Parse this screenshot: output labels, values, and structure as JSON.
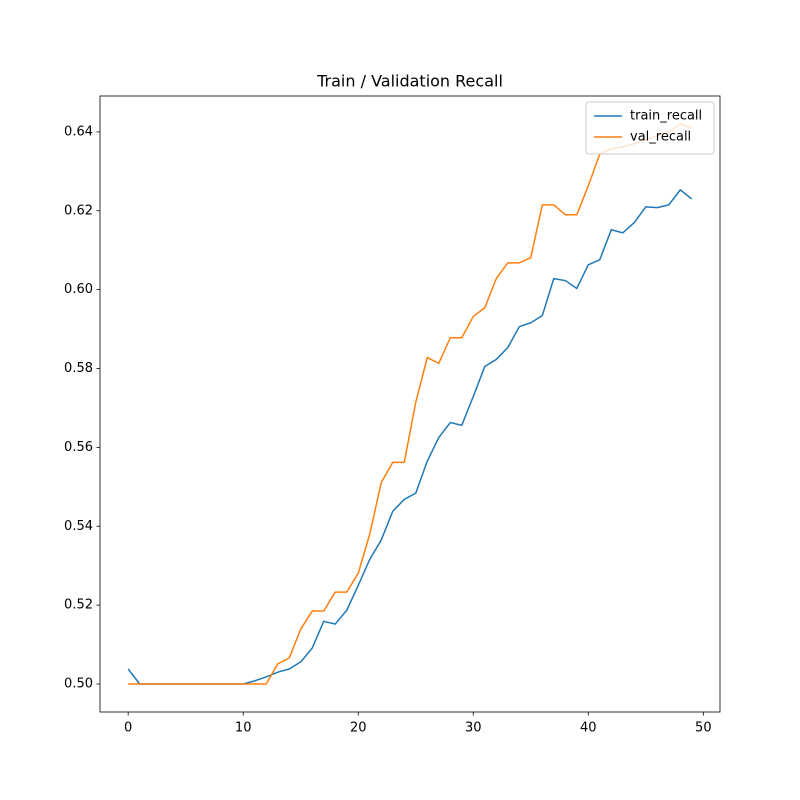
{
  "chart_data": {
    "type": "line",
    "title": "Train / Validation Recall",
    "x": [
      0,
      1,
      2,
      3,
      4,
      5,
      6,
      7,
      8,
      9,
      10,
      11,
      12,
      13,
      14,
      15,
      16,
      17,
      18,
      19,
      20,
      21,
      22,
      23,
      24,
      25,
      26,
      27,
      28,
      29,
      30,
      31,
      32,
      33,
      34,
      35,
      36,
      37,
      38,
      39,
      40,
      41,
      42,
      43,
      44,
      45,
      46,
      47,
      48,
      49
    ],
    "series": [
      {
        "name": "train_recall",
        "color": "#1f77b4",
        "values": [
          0.5038,
          0.5,
          0.5,
          0.5,
          0.5,
          0.5,
          0.5,
          0.5,
          0.5,
          0.5,
          0.5,
          0.5008,
          0.5018,
          0.503,
          0.5038,
          0.5056,
          0.5091,
          0.5159,
          0.5152,
          0.5187,
          0.525,
          0.5316,
          0.5365,
          0.5438,
          0.5468,
          0.5484,
          0.5565,
          0.5625,
          0.5663,
          0.5656,
          0.5729,
          0.5805,
          0.5823,
          0.5853,
          0.5906,
          0.5916,
          0.5934,
          0.6028,
          0.6023,
          0.6003,
          0.6063,
          0.6076,
          0.6152,
          0.6144,
          0.617,
          0.621,
          0.6208,
          0.6215,
          0.6253,
          0.623
        ]
      },
      {
        "name": "val_recall",
        "color": "#ff7f0e",
        "values": [
          0.5,
          0.5,
          0.5,
          0.5,
          0.5,
          0.5,
          0.5,
          0.5,
          0.5,
          0.5,
          0.5,
          0.5,
          0.5,
          0.5051,
          0.5066,
          0.5139,
          0.5185,
          0.5185,
          0.5233,
          0.5233,
          0.5281,
          0.538,
          0.5511,
          0.5562,
          0.5562,
          0.5714,
          0.5828,
          0.5813,
          0.5878,
          0.5878,
          0.5932,
          0.5954,
          0.6028,
          0.6068,
          0.6068,
          0.6081,
          0.6215,
          0.6215,
          0.619,
          0.619,
          0.6263,
          0.6344,
          0.6357,
          0.6362,
          0.637,
          0.638,
          0.639,
          0.64,
          0.642,
          0.641
        ]
      }
    ],
    "xlim": [
      -2.45,
      51.45
    ],
    "xticks": [
      0,
      10,
      20,
      30,
      40,
      50
    ],
    "ylim": [
      0.4929,
      0.6491
    ],
    "yticks": [
      {
        "value": 0.5,
        "label": "0.50"
      },
      0.52,
      0.54,
      0.56,
      0.58,
      {
        "value": 0.6,
        "label": "0.60"
      },
      0.62,
      0.64
    ],
    "legend": "upper right"
  }
}
